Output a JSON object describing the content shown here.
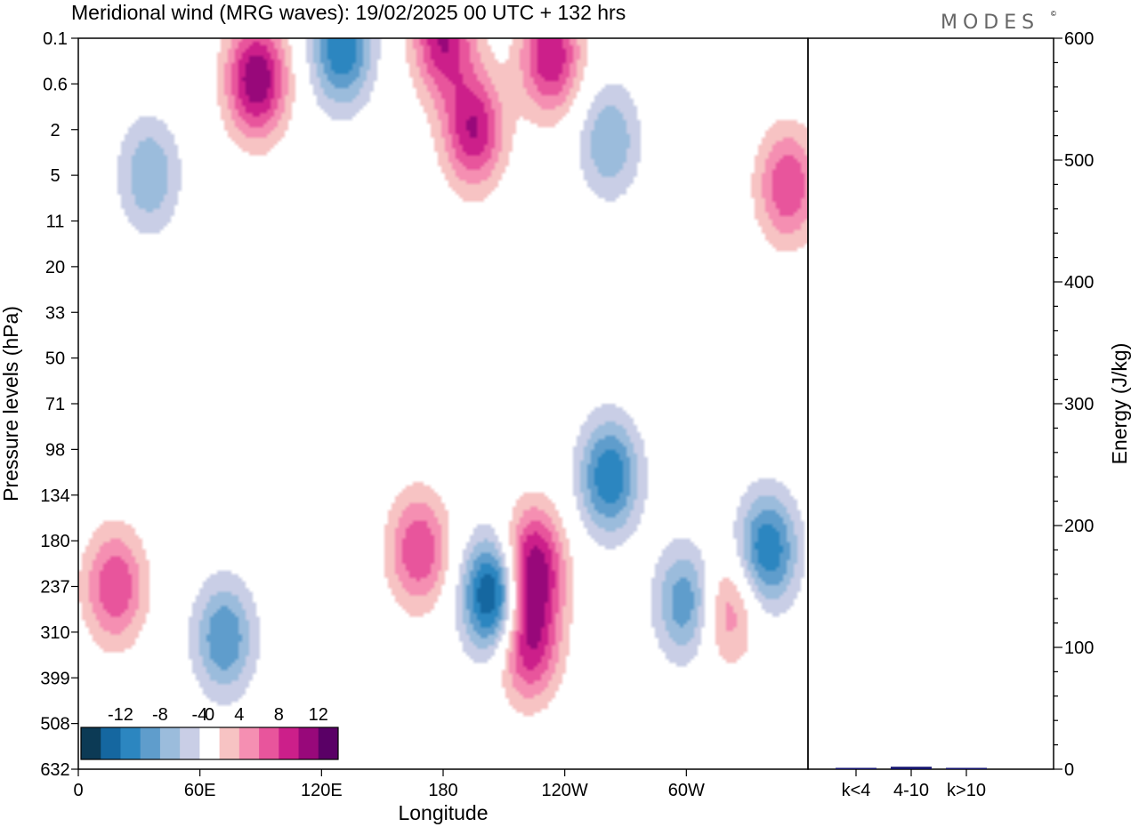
{
  "title": "Meridional wind (MRG waves):  19/02/2025  00 UTC  + 132 hrs",
  "brand": "MODES",
  "brand_mark": "©",
  "chart_data": [
    {
      "type": "heatmap",
      "title": "Meridional wind (MRG waves):  19/02/2025  00 UTC  + 132 hrs",
      "xlabel": "Longitude",
      "ylabel": "Pressure levels (hPa)",
      "x_ticks": [
        "0",
        "60E",
        "120E",
        "180",
        "120W",
        "60W"
      ],
      "x_tick_degrees": [
        0,
        60,
        120,
        180,
        240,
        300
      ],
      "xlim": [
        0,
        360
      ],
      "y_ticks": [
        "0.1",
        "0.6",
        "2",
        "5",
        "11",
        "20",
        "33",
        "50",
        "71",
        "98",
        "134",
        "180",
        "237",
        "310",
        "399",
        "508",
        "632"
      ],
      "y_scale": "model levels (non-linear pressure)",
      "colorbar": {
        "labels": [
          "-12",
          "-8",
          "-4",
          "0",
          "4",
          "8",
          "12"
        ],
        "levels": [
          -14,
          -12,
          -10,
          -8,
          -6,
          -4,
          -2,
          2,
          4,
          6,
          8,
          10,
          12,
          14
        ],
        "colors": [
          "#0c3a55",
          "#1567a0",
          "#2c86c0",
          "#5f9dcc",
          "#9bbcdc",
          "#c9cee6",
          "#ffffff",
          "#f7c3c3",
          "#f58fb2",
          "#e8559c",
          "#cc1f8a",
          "#98087a",
          "#5a0066"
        ]
      },
      "features": [
        {
          "lon": 205,
          "level": 250,
          "value": -14
        },
        {
          "lon": 224,
          "level": 210,
          "value": 12
        },
        {
          "lon": 222,
          "level": 330,
          "value": 10
        },
        {
          "lon": 262,
          "level": 118,
          "value": -10
        },
        {
          "lon": 18,
          "level": 237,
          "value": 8
        },
        {
          "lon": 168,
          "level": 190,
          "value": 8
        },
        {
          "lon": 72,
          "level": 320,
          "value": -8
        },
        {
          "lon": 300,
          "level": 260,
          "value": -8
        },
        {
          "lon": 320,
          "level": 270,
          "value": 6
        },
        {
          "lon": 340,
          "level": 190,
          "value": -10
        },
        {
          "lon": 130,
          "level": 0.15,
          "value": -10
        },
        {
          "lon": 88,
          "level": 0.5,
          "value": 12
        },
        {
          "lon": 180,
          "level": 0.1,
          "value": 10
        },
        {
          "lon": 233,
          "level": 0.2,
          "value": 10
        },
        {
          "lon": 195,
          "level": 2,
          "value": 10
        },
        {
          "lon": 350,
          "level": 6,
          "value": 8
        },
        {
          "lon": 35,
          "level": 5,
          "value": -6
        },
        {
          "lon": 262,
          "level": 2.5,
          "value": -6
        }
      ]
    },
    {
      "type": "bar",
      "categories": [
        "k<4",
        "4-10",
        "k>10"
      ],
      "values": [
        1,
        2,
        0.5
      ],
      "ylabel": "Energy (J/kg)",
      "ylim": [
        0,
        600
      ],
      "y_ticks": [
        "0",
        "100",
        "200",
        "300",
        "400",
        "500",
        "600"
      ],
      "bar_color": "#14146e"
    }
  ]
}
